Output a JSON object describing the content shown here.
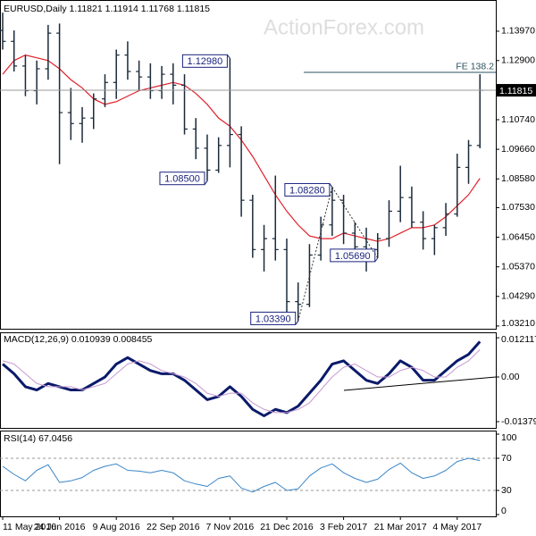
{
  "chart_data": [
    {
      "type": "ohlc",
      "title": "EURUSD,Daily",
      "watermark": "ActionForex.com",
      "last_quote": [
        1.11821,
        1.11914,
        1.11768,
        1.11815
      ],
      "color": "#1b2a3a",
      "open": [
        1.14,
        1.136,
        1.127,
        1.118,
        1.126,
        1.139,
        1.11,
        1.106,
        1.108,
        1.115,
        1.121,
        1.131,
        1.125,
        1.123,
        1.118,
        1.124,
        1.12,
        1.104,
        1.097,
        1.089,
        1.098,
        1.102,
        1.078,
        1.06,
        1.064,
        1.06,
        1.041,
        1.04,
        1.058,
        1.069,
        1.078,
        1.066,
        1.061,
        1.06,
        1.064,
        1.074,
        1.079,
        1.07,
        1.064,
        1.068,
        1.073,
        1.09,
        1.098
      ],
      "high": [
        1.1465,
        1.14,
        1.131,
        1.129,
        1.142,
        1.1425,
        1.119,
        1.112,
        1.117,
        1.124,
        1.133,
        1.136,
        1.129,
        1.128,
        1.127,
        1.128,
        1.124,
        1.108,
        1.102,
        1.101,
        1.1298,
        1.105,
        1.08,
        1.069,
        1.087,
        1.064,
        1.048,
        1.062,
        1.072,
        1.0828,
        1.08,
        1.07,
        1.068,
        1.066,
        1.078,
        1.0906,
        1.083,
        1.074,
        1.069,
        1.077,
        1.095,
        1.1,
        1.124
      ],
      "low": [
        1.133,
        1.125,
        1.116,
        1.113,
        1.122,
        1.0912,
        1.1,
        1.099,
        1.104,
        1.112,
        1.115,
        1.122,
        1.118,
        1.115,
        1.115,
        1.113,
        1.102,
        1.093,
        1.085,
        1.088,
        1.09,
        1.072,
        1.057,
        1.052,
        1.056,
        1.035,
        1.0339,
        1.039,
        1.056,
        1.065,
        1.062,
        1.056,
        1.052,
        1.0569,
        1.061,
        1.07,
        1.068,
        1.06,
        1.058,
        1.065,
        1.072,
        1.084,
        1.097
      ],
      "close": [
        1.136,
        1.127,
        1.118,
        1.126,
        1.139,
        1.11,
        1.106,
        1.108,
        1.115,
        1.121,
        1.131,
        1.125,
        1.123,
        1.118,
        1.124,
        1.12,
        1.104,
        1.097,
        1.089,
        1.098,
        1.102,
        1.078,
        1.06,
        1.064,
        1.06,
        1.041,
        1.04,
        1.058,
        1.069,
        1.078,
        1.066,
        1.061,
        1.056,
        1.064,
        1.074,
        1.079,
        1.07,
        1.064,
        1.068,
        1.073,
        1.09,
        1.098,
        1.11815
      ],
      "overlays": [
        {
          "color": "#e0202a",
          "values": [
            1.124,
            1.129,
            1.131,
            1.13,
            1.129,
            1.126,
            1.122,
            1.119,
            1.115,
            1.113,
            1.114,
            1.116,
            1.118,
            1.119,
            1.12,
            1.121,
            1.12,
            1.117,
            1.113,
            1.108,
            1.105,
            1.1,
            1.094,
            1.087,
            1.08,
            1.074,
            1.069,
            1.065,
            1.064,
            1.064,
            1.066,
            1.065,
            1.064,
            1.063,
            1.064,
            1.066,
            1.068,
            1.068,
            1.069,
            1.072,
            1.076,
            1.08,
            1.086
          ]
        }
      ],
      "annotations": [
        {
          "value": 1.1298,
          "label": "1.12980"
        },
        {
          "value": 1.085,
          "label": "1.08500"
        },
        {
          "value": 1.0828,
          "label": "1.08280"
        },
        {
          "value": 1.0569,
          "label": "1.05690"
        },
        {
          "value": 1.0339,
          "label": "1.03390"
        }
      ],
      "level": {
        "value": 1.1247,
        "label": "FE 138.2"
      },
      "ylim": [
        1.0311,
        1.1511
      ],
      "yticks": [
        {
          "value": 1.1397,
          "label": "1.13970"
        },
        {
          "value": 1.129,
          "label": "1.12900"
        },
        {
          "value": 1.1074,
          "label": "1.10740"
        },
        {
          "value": 1.0966,
          "label": "1.09660"
        },
        {
          "value": 1.0858,
          "label": "1.08580"
        },
        {
          "value": 1.0753,
          "label": "1.07530"
        },
        {
          "value": 1.0645,
          "label": "1.06450"
        },
        {
          "value": 1.0537,
          "label": "1.05370"
        },
        {
          "value": 1.0429,
          "label": "1.04290"
        },
        {
          "value": 1.0321,
          "label": "1.03210"
        }
      ]
    },
    {
      "type": "line",
      "title": "MACD(12,26,9)",
      "series": [
        {
          "color": "#0a1a6a",
          "width": 3,
          "values": [
            0.004,
            0.001,
            -0.003,
            -0.004,
            -0.002,
            -0.003,
            -0.004,
            -0.004,
            -0.002,
            0.0,
            0.004,
            0.006,
            0.004,
            0.002,
            0.001,
            0.001,
            -0.001,
            -0.004,
            -0.007,
            -0.006,
            -0.003,
            -0.006,
            -0.01,
            -0.012,
            -0.01,
            -0.011,
            -0.009,
            -0.005,
            -0.001,
            0.004,
            0.005,
            0.002,
            -0.001,
            -0.002,
            0.001,
            0.005,
            0.003,
            -0.001,
            -0.001,
            0.002,
            0.005,
            0.007,
            0.010939
          ]
        },
        {
          "color": "#c79ad0",
          "width": 1,
          "values": [
            0.005,
            0.004,
            0.001,
            -0.002,
            -0.003,
            -0.003,
            -0.003,
            -0.004,
            -0.003,
            -0.002,
            0.001,
            0.004,
            0.005,
            0.004,
            0.002,
            0.001,
            0.0,
            -0.002,
            -0.005,
            -0.006,
            -0.005,
            -0.005,
            -0.008,
            -0.01,
            -0.011,
            -0.011,
            -0.01,
            -0.008,
            -0.004,
            0.0,
            0.003,
            0.004,
            0.002,
            0.0,
            0.0,
            0.002,
            0.003,
            0.002,
            0.0,
            0.0,
            0.003,
            0.005,
            0.008455
          ]
        }
      ],
      "ylim": [
        -0.016,
        0.0138
      ],
      "yticks": [
        0.012117,
        {
          "value": 0,
          "label": "0.00"
        },
        -0.013795
      ]
    },
    {
      "type": "line",
      "title": "RSI(14)",
      "categories": [
        "11 May 2016",
        null,
        null,
        null,
        null,
        "24 Jun 2016",
        null,
        null,
        null,
        null,
        "9 Aug 2016",
        null,
        null,
        null,
        null,
        "22 Sep 2016",
        null,
        null,
        null,
        null,
        "7 Nov 2016",
        null,
        null,
        null,
        null,
        "21 Dec 2016",
        null,
        null,
        null,
        null,
        "3 Feb 2017",
        null,
        null,
        null,
        null,
        "21 Mar 2017",
        null,
        null,
        null,
        null,
        "4 May 2017",
        null,
        null
      ],
      "series": [
        {
          "color": "#3a86c8",
          "width": 1,
          "values": [
            60,
            50,
            42,
            55,
            62,
            40,
            42,
            46,
            55,
            60,
            63,
            55,
            54,
            52,
            55,
            52,
            42,
            38,
            35,
            45,
            48,
            33,
            28,
            35,
            40,
            30,
            32,
            48,
            58,
            63,
            52,
            45,
            40,
            44,
            56,
            64,
            52,
            45,
            48,
            55,
            66,
            70,
            67.0456
          ]
        }
      ],
      "levels": [
        70,
        30
      ],
      "ylim": [
        0,
        100
      ],
      "yticks": [
        100,
        70,
        30,
        0
      ]
    }
  ]
}
